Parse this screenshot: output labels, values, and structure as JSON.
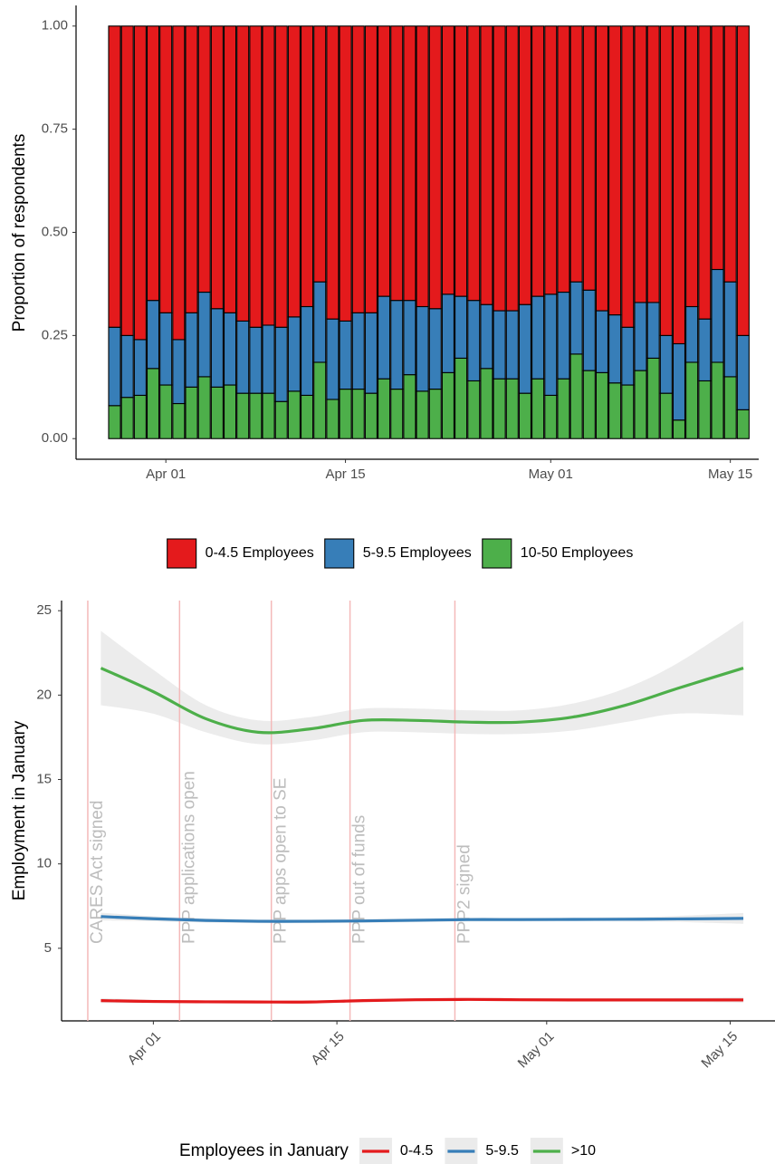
{
  "chart_data": [
    {
      "type": "bar",
      "stacked": true,
      "ylabel": "Proportion of respondents",
      "x": [
        "Mar 28",
        "Mar 29",
        "Mar 30",
        "Mar 31",
        "Apr 01",
        "Apr 02",
        "Apr 03",
        "Apr 04",
        "Apr 05",
        "Apr 06",
        "Apr 07",
        "Apr 08",
        "Apr 09",
        "Apr 10",
        "Apr 11",
        "Apr 12",
        "Apr 13",
        "Apr 14",
        "Apr 15",
        "Apr 16",
        "Apr 17",
        "Apr 18",
        "Apr 19",
        "Apr 20",
        "Apr 21",
        "Apr 22",
        "Apr 23",
        "Apr 24",
        "Apr 25",
        "Apr 26",
        "Apr 27",
        "Apr 28",
        "Apr 29",
        "Apr 30",
        "May 01",
        "May 02",
        "May 03",
        "May 04",
        "May 05",
        "May 06",
        "May 07",
        "May 08",
        "May 09",
        "May 10",
        "May 11",
        "May 12",
        "May 13",
        "May 14",
        "May 15",
        "May 16"
      ],
      "series": [
        {
          "name": "0-4.5 Employees",
          "color": "#e41a1c",
          "values": [
            0.73,
            0.75,
            0.76,
            0.665,
            0.695,
            0.76,
            0.695,
            0.645,
            0.685,
            0.695,
            0.715,
            0.73,
            0.725,
            0.73,
            0.705,
            0.68,
            0.62,
            0.71,
            0.715,
            0.695,
            0.695,
            0.655,
            0.665,
            0.665,
            0.68,
            0.685,
            0.65,
            0.655,
            0.665,
            0.675,
            0.69,
            0.69,
            0.675,
            0.655,
            0.65,
            0.645,
            0.62,
            0.64,
            0.69,
            0.7,
            0.73,
            0.67,
            0.67,
            0.75,
            0.77,
            0.68,
            0.71,
            0.59,
            0.62,
            0.75
          ]
        },
        {
          "name": "5-9.5 Employees",
          "color": "#377eb8",
          "values": [
            0.19,
            0.15,
            0.135,
            0.165,
            0.175,
            0.155,
            0.18,
            0.205,
            0.19,
            0.175,
            0.175,
            0.16,
            0.165,
            0.18,
            0.18,
            0.215,
            0.195,
            0.195,
            0.165,
            0.185,
            0.195,
            0.2,
            0.215,
            0.18,
            0.205,
            0.195,
            0.19,
            0.15,
            0.195,
            0.155,
            0.165,
            0.165,
            0.215,
            0.2,
            0.245,
            0.21,
            0.175,
            0.195,
            0.15,
            0.165,
            0.14,
            0.165,
            0.135,
            0.14,
            0.185,
            0.135,
            0.15,
            0.225,
            0.23,
            0.18
          ]
        },
        {
          "name": "10-50 Employees",
          "color": "#4daf4a",
          "values": [
            0.08,
            0.1,
            0.105,
            0.17,
            0.13,
            0.085,
            0.125,
            0.15,
            0.125,
            0.13,
            0.11,
            0.11,
            0.11,
            0.09,
            0.115,
            0.105,
            0.185,
            0.095,
            0.12,
            0.12,
            0.11,
            0.145,
            0.12,
            0.155,
            0.115,
            0.12,
            0.16,
            0.195,
            0.14,
            0.17,
            0.145,
            0.145,
            0.11,
            0.145,
            0.105,
            0.145,
            0.205,
            0.165,
            0.16,
            0.135,
            0.13,
            0.165,
            0.195,
            0.11,
            0.045,
            0.185,
            0.14,
            0.185,
            0.15,
            0.07
          ]
        }
      ],
      "xlim": [
        "Mar 25",
        "May 17"
      ],
      "xticks": [
        "Apr 01",
        "Apr 15",
        "May 01",
        "May 15"
      ],
      "ylim": [
        -0.05,
        1.05
      ],
      "yticks": [
        {
          "value": 0,
          "label": "0.00"
        },
        {
          "value": 0.25,
          "label": "0.25"
        },
        {
          "value": 0.5,
          "label": "0.50"
        },
        {
          "value": 0.75,
          "label": "0.75"
        },
        {
          "value": 1,
          "label": "1.00"
        }
      ],
      "legend": "bottom"
    },
    {
      "type": "line",
      "ylabel": "Employment in January",
      "legend_title": "Employees in January",
      "x": [
        "Mar 28",
        "Apr 01",
        "Apr 05",
        "Apr 09",
        "Apr 13",
        "Apr 17",
        "Apr 21",
        "Apr 25",
        "Apr 29",
        "May 03",
        "May 07",
        "May 11",
        "May 16"
      ],
      "series": [
        {
          "name": "0-4.5",
          "color": "#e41a1c",
          "values": [
            1.9,
            1.85,
            1.83,
            1.82,
            1.82,
            1.9,
            1.95,
            1.97,
            1.95,
            1.94,
            1.94,
            1.94,
            1.94
          ],
          "lower": [
            1.75,
            1.75,
            1.74,
            1.73,
            1.73,
            1.81,
            1.86,
            1.88,
            1.86,
            1.85,
            1.84,
            1.82,
            1.77
          ],
          "upper": [
            2.05,
            1.95,
            1.92,
            1.91,
            1.91,
            1.99,
            2.04,
            2.06,
            2.04,
            2.03,
            2.04,
            2.06,
            2.11
          ]
        },
        {
          "name": "5-9.5",
          "color": "#377eb8",
          "values": [
            6.88,
            6.75,
            6.65,
            6.6,
            6.6,
            6.62,
            6.66,
            6.7,
            6.7,
            6.71,
            6.72,
            6.74,
            6.77
          ],
          "lower": [
            6.65,
            6.6,
            6.53,
            6.49,
            6.49,
            6.51,
            6.55,
            6.59,
            6.59,
            6.6,
            6.59,
            6.56,
            6.45
          ],
          "upper": [
            7.11,
            6.9,
            6.77,
            6.71,
            6.71,
            6.73,
            6.77,
            6.81,
            6.81,
            6.82,
            6.85,
            6.92,
            7.09
          ]
        },
        {
          "name": ">10",
          "color": "#4daf4a",
          "values": [
            21.6,
            20.2,
            18.6,
            17.8,
            18.0,
            18.5,
            18.5,
            18.4,
            18.4,
            18.7,
            19.4,
            20.4,
            21.6
          ],
          "lower": [
            19.4,
            18.9,
            17.8,
            17.1,
            17.3,
            17.8,
            17.8,
            17.7,
            17.7,
            17.9,
            18.4,
            18.9,
            18.8
          ],
          "upper": [
            23.8,
            21.5,
            19.4,
            18.5,
            18.7,
            19.2,
            19.2,
            19.1,
            19.1,
            19.5,
            20.4,
            21.9,
            24.4
          ]
        }
      ],
      "annotations": [
        {
          "x": "Mar 27",
          "label": "CARES Act signed"
        },
        {
          "x": "Apr 03",
          "label": "PPP applications open"
        },
        {
          "x": "Apr 10",
          "label": "PPP apps open to SE"
        },
        {
          "x": "Apr 16",
          "label": "PPP out of funds"
        },
        {
          "x": "Apr 24",
          "label": "PPP2 signed"
        }
      ],
      "annotation_color": "#f4b9b9",
      "ribbon_color": "#ebebeb",
      "xlim": [
        "Mar 25",
        "May 18"
      ],
      "xticks": [
        "Apr 01",
        "Apr 15",
        "May 01",
        "May 15"
      ],
      "ylim": [
        0.7,
        25.6
      ],
      "yticks": [
        5,
        10,
        15,
        20,
        25
      ],
      "legend": "bottom"
    }
  ]
}
